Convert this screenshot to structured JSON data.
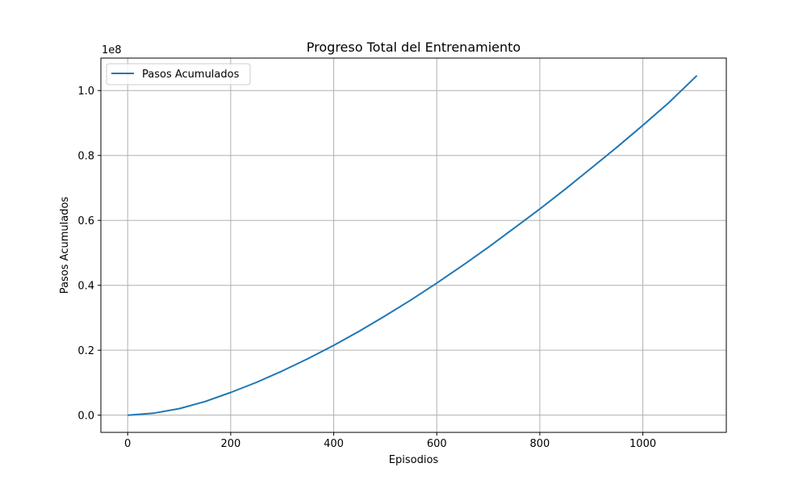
{
  "chart_data": {
    "type": "line",
    "title": "Progreso Total del Entrenamiento",
    "xlabel": "Episodios",
    "ylabel": "Pasos Acumulados",
    "y_offset_text": "1e8",
    "xlim": [
      -52,
      1162
    ],
    "ylim": [
      -0.053,
      1.1
    ],
    "y_scale_note": "values in units of 1e8",
    "xticks": [
      0,
      200,
      400,
      600,
      800,
      1000
    ],
    "xtick_labels": [
      "0",
      "200",
      "400",
      "600",
      "800",
      "1000"
    ],
    "yticks": [
      0.0,
      0.2,
      0.4,
      0.6,
      0.8,
      1.0
    ],
    "ytick_labels": [
      "0.0",
      "0.2",
      "0.4",
      "0.6",
      "0.8",
      "1.0"
    ],
    "grid": true,
    "legend_position": "top-left",
    "series": [
      {
        "name": "Pasos Acumulados",
        "color": "#1f77b4",
        "x": [
          0,
          50,
          100,
          150,
          200,
          250,
          300,
          350,
          400,
          450,
          500,
          550,
          600,
          650,
          700,
          750,
          800,
          850,
          900,
          950,
          1000,
          1050,
          1105
        ],
        "y": [
          0.0,
          0.006,
          0.02,
          0.042,
          0.07,
          0.101,
          0.136,
          0.174,
          0.215,
          0.259,
          0.306,
          0.355,
          0.407,
          0.461,
          0.517,
          0.576,
          0.635,
          0.697,
          0.761,
          0.826,
          0.893,
          0.962,
          1.046
        ]
      }
    ]
  }
}
